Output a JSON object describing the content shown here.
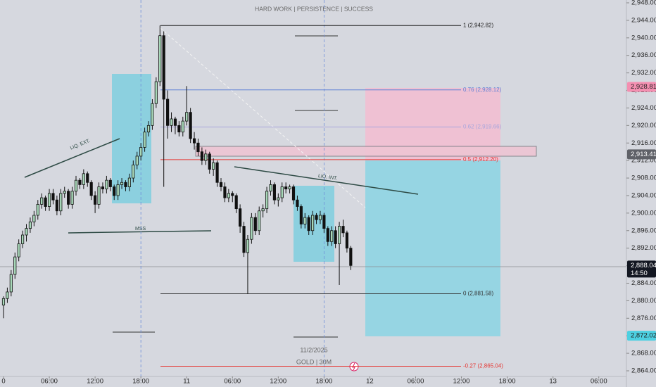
{
  "chart_data": {
    "type": "candlestick",
    "title": "HARD WORK | PERSISTENCE | SUCCESS",
    "date_label": "11/2/2025",
    "symbol_label": "GOLD | 30M",
    "annotations": [
      "LIQ. EXT.",
      "LIQ. INT.",
      "MSS"
    ],
    "up_color": "#a8d8b9",
    "down_color": "#111111",
    "xlim": [
      -0.92,
      161.4
    ],
    "ylim": [
      2864,
      2948
    ],
    "xticks": [
      {
        "value": 0,
        "label": "0"
      },
      {
        "value": 12,
        "label": "06:00"
      },
      {
        "value": 24,
        "label": "12:00"
      },
      {
        "value": 36,
        "label": "18:00"
      },
      {
        "value": 48,
        "label": "11"
      },
      {
        "value": 60,
        "label": "06:00"
      },
      {
        "value": 72,
        "label": "12:00"
      },
      {
        "value": 84,
        "label": "18:00"
      },
      {
        "value": 96,
        "label": "12"
      },
      {
        "value": 108,
        "label": "06:00"
      },
      {
        "value": 120,
        "label": "12:00"
      },
      {
        "value": 132,
        "label": "18:00"
      },
      {
        "value": 144,
        "label": "13"
      },
      {
        "value": 156,
        "label": "06:00"
      }
    ],
    "yticks": [
      {
        "value": 2864,
        "label": "2,864.00"
      },
      {
        "value": 2868,
        "label": "2,868.00"
      },
      {
        "value": 2872,
        "label": "2,872.00"
      },
      {
        "value": 2876,
        "label": "2,876.00"
      },
      {
        "value": 2880,
        "label": "2,880.00"
      },
      {
        "value": 2884,
        "label": "2,884.00"
      },
      {
        "value": 2888,
        "label": "2,888.00"
      },
      {
        "value": 2892,
        "label": "2,892.00"
      },
      {
        "value": 2896,
        "label": "2,896.00"
      },
      {
        "value": 2900,
        "label": "2,900.00"
      },
      {
        "value": 2904,
        "label": "2,904.00"
      },
      {
        "value": 2908,
        "label": "2,908.00"
      },
      {
        "value": 2912,
        "label": "2,912.00"
      },
      {
        "value": 2916,
        "label": "2,916.00"
      },
      {
        "value": 2920,
        "label": "2,920.00"
      },
      {
        "value": 2924,
        "label": "2,924.00"
      },
      {
        "value": 2928,
        "label": "2,928.00"
      },
      {
        "value": 2932,
        "label": "2,932.00"
      },
      {
        "value": 2936,
        "label": "2,936.00"
      },
      {
        "value": 2940,
        "label": "2,940.00"
      },
      {
        "value": 2944,
        "label": "2,944.00"
      },
      {
        "value": 2948,
        "label": "2,948.00"
      }
    ],
    "vertical_markers": [
      36,
      84
    ],
    "fib_levels": [
      {
        "value": 2942.82,
        "label": "1 (2,942.82)",
        "color": "#222222"
      },
      {
        "value": 2928.12,
        "label": "0.76 (2,928.12)",
        "color": "#5b7fd6"
      },
      {
        "value": 2919.66,
        "label": "0.62 (2,919.66)",
        "color": "#a9a6dc"
      },
      {
        "value": 2912.2,
        "label": "0.5 (2,912.20)",
        "color": "#e53935"
      },
      {
        "value": 2881.58,
        "label": "0 (2,881.58)",
        "color": "#333333"
      },
      {
        "value": 2865.04,
        "label": "-0.27 (2,865.04)",
        "color": "#e53935"
      }
    ],
    "price_tags": [
      {
        "value": 2928.81,
        "label": "2,928.81",
        "color": "#f48fb1"
      },
      {
        "value": 2913.41,
        "label": "2,913.41",
        "color": "#5f6168"
      },
      {
        "value": 2872.02,
        "label": "2,872.02",
        "color": "#4dd0e1"
      }
    ],
    "last_price": {
      "value": 2888.04,
      "label": "2,888.04",
      "countdown": "14:50"
    },
    "candles": [
      [
        2879,
        2881,
        2876,
        2880.5
      ],
      [
        2880.5,
        2883,
        2879.5,
        2882
      ],
      [
        2882,
        2887,
        2881,
        2886
      ],
      [
        2886,
        2891,
        2885,
        2890
      ],
      [
        2890,
        2894,
        2889,
        2893
      ],
      [
        2893,
        2896,
        2892,
        2895
      ],
      [
        2895,
        2897.5,
        2893.5,
        2896.5
      ],
      [
        2896.5,
        2899,
        2895.5,
        2898
      ],
      [
        2898,
        2900.5,
        2897,
        2899.5
      ],
      [
        2899.5,
        2903,
        2898.5,
        2902
      ],
      [
        2902,
        2904.5,
        2901,
        2903.5
      ],
      [
        2903.5,
        2904,
        2900.5,
        2901.5
      ],
      [
        2901.5,
        2905.5,
        2900.5,
        2904.5
      ],
      [
        2904.5,
        2905.5,
        2902,
        2903
      ],
      [
        2903,
        2904,
        2899.5,
        2900.5
      ],
      [
        2900.5,
        2905.5,
        2899.5,
        2904.5
      ],
      [
        2904.5,
        2906,
        2903.5,
        2905
      ],
      [
        2905,
        2905.5,
        2901,
        2902
      ],
      [
        2902,
        2906,
        2901,
        2905
      ],
      [
        2905,
        2908.5,
        2904,
        2907.5
      ],
      [
        2907.5,
        2908,
        2905.5,
        2906.5
      ],
      [
        2906.5,
        2910,
        2905.5,
        2909
      ],
      [
        2909,
        2909.5,
        2906,
        2907
      ],
      [
        2907,
        2907.5,
        2903,
        2904
      ],
      [
        2904,
        2905,
        2900,
        2902
      ],
      [
        2902,
        2907,
        2901,
        2906
      ],
      [
        2906,
        2907,
        2904.5,
        2905.5
      ],
      [
        2905.5,
        2908.5,
        2904.5,
        2907.5
      ],
      [
        2907.5,
        2908,
        2905,
        2906
      ],
      [
        2906,
        2906.5,
        2903,
        2904
      ],
      [
        2904,
        2907.5,
        2903,
        2906.5
      ],
      [
        2906.5,
        2908,
        2905.5,
        2907
      ],
      [
        2907,
        2907.5,
        2905,
        2906
      ],
      [
        2906,
        2909,
        2905,
        2908
      ],
      [
        2908,
        2912,
        2907,
        2911
      ],
      [
        2911,
        2914,
        2910,
        2913
      ],
      [
        2913,
        2916,
        2912,
        2915
      ],
      [
        2915,
        2919.5,
        2914,
        2918.5
      ],
      [
        2918.5,
        2921,
        2917.5,
        2920
      ],
      [
        2920,
        2926,
        2919,
        2925
      ],
      [
        2925,
        2931,
        2924,
        2930
      ],
      [
        2930,
        2942.82,
        2929,
        2940.5
      ],
      [
        2940.5,
        2941.5,
        2906,
        2926
      ],
      [
        2926,
        2928,
        2917,
        2920
      ],
      [
        2920,
        2923,
        2918.5,
        2921.5
      ],
      [
        2921.5,
        2922,
        2918,
        2920
      ],
      [
        2920,
        2921,
        2917.5,
        2918.5
      ],
      [
        2918.5,
        2922,
        2917.5,
        2921
      ],
      [
        2921,
        2929,
        2920,
        2923
      ],
      [
        2923,
        2924,
        2916,
        2917
      ],
      [
        2917,
        2918.5,
        2914.5,
        2916
      ],
      [
        2916,
        2917,
        2913,
        2914
      ],
      [
        2914,
        2915,
        2911,
        2912
      ],
      [
        2912,
        2914.5,
        2911,
        2913.5
      ],
      [
        2913.5,
        2914,
        2909,
        2910
      ],
      [
        2910,
        2912.5,
        2908.5,
        2911.5
      ],
      [
        2911.5,
        2912,
        2906,
        2907
      ],
      [
        2907,
        2908,
        2905,
        2906
      ],
      [
        2906,
        2907,
        2902.5,
        2903.5
      ],
      [
        2903.5,
        2905.5,
        2902.5,
        2904.5
      ],
      [
        2904.5,
        2905,
        2902.5,
        2904
      ],
      [
        2904,
        2904.5,
        2900,
        2901
      ],
      [
        2901,
        2902,
        2895.5,
        2897
      ],
      [
        2897,
        2898,
        2890,
        2891
      ],
      [
        2891,
        2895,
        2881.58,
        2894
      ],
      [
        2894,
        2900,
        2893,
        2899
      ],
      [
        2899,
        2900,
        2895,
        2896
      ],
      [
        2896,
        2901.5,
        2895,
        2900.5
      ],
      [
        2900.5,
        2902,
        2899,
        2901
      ],
      [
        2901,
        2906,
        2900,
        2905
      ],
      [
        2905,
        2907.5,
        2904,
        2906.5
      ],
      [
        2906.5,
        2907,
        2902,
        2903
      ],
      [
        2903,
        2904.5,
        2901.5,
        2903.5
      ],
      [
        2903.5,
        2907,
        2902.5,
        2906
      ],
      [
        2906,
        2907,
        2904.5,
        2905.5
      ],
      [
        2905.5,
        2906.5,
        2904.5,
        2906
      ],
      [
        2906,
        2906.5,
        2902,
        2903
      ],
      [
        2903,
        2904,
        2900.5,
        2901.5
      ],
      [
        2901.5,
        2902,
        2896.5,
        2897.5
      ],
      [
        2897.5,
        2900,
        2896.5,
        2899
      ],
      [
        2899,
        2899.5,
        2895,
        2896
      ],
      [
        2896,
        2900.5,
        2895,
        2899.5
      ],
      [
        2899.5,
        2900,
        2897.5,
        2898.5
      ],
      [
        2898.5,
        2900.5,
        2897.5,
        2899.5
      ],
      [
        2899.5,
        2900,
        2895.5,
        2896.5
      ],
      [
        2896.5,
        2897,
        2892.5,
        2893.5
      ],
      [
        2893.5,
        2897,
        2892.5,
        2896
      ],
      [
        2896,
        2897,
        2892,
        2893
      ],
      [
        2893,
        2898,
        2883.6,
        2897
      ],
      [
        2897,
        2898.5,
        2894.5,
        2895.5
      ],
      [
        2895.5,
        2896,
        2891,
        2892
      ],
      [
        2892,
        2892.5,
        2887,
        2888.04
      ]
    ]
  }
}
